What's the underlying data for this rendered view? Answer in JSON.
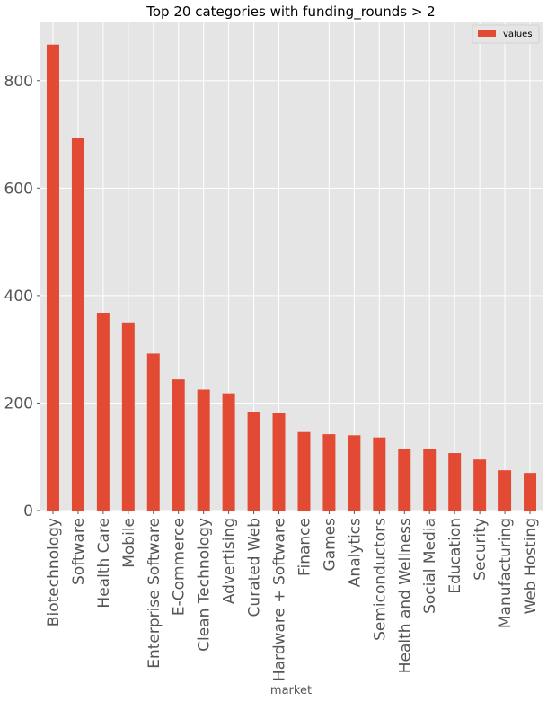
{
  "chart_data": {
    "type": "bar",
    "title": "Top 20 categories with funding_rounds > 2",
    "xlabel": "market",
    "ylabel": "",
    "ylim": [
      0,
      910
    ],
    "yticks": [
      0,
      200,
      400,
      600,
      800
    ],
    "grid": true,
    "legend_position": "top-right",
    "categories": [
      "Biotechnology",
      "Software",
      "Health Care",
      "Mobile",
      "Enterprise Software",
      "E-Commerce",
      "Clean Technology",
      "Advertising",
      "Curated Web",
      "Hardware + Software",
      "Finance",
      "Games",
      "Analytics",
      "Semiconductors",
      "Health and Wellness",
      "Social Media",
      "Education",
      "Security",
      "Manufacturing",
      "Web Hosting"
    ],
    "series": [
      {
        "name": "values",
        "color": "#E24A33",
        "values": [
          867,
          693,
          368,
          350,
          292,
          244,
          225,
          218,
          184,
          181,
          146,
          142,
          140,
          136,
          115,
          114,
          107,
          95,
          75,
          70
        ]
      }
    ]
  }
}
